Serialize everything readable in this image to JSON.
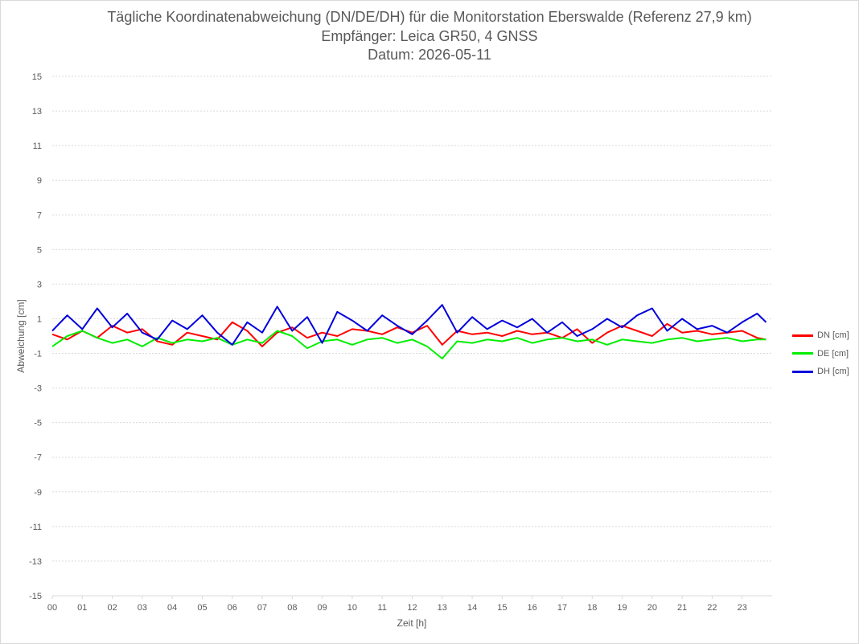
{
  "chart_data": {
    "type": "line",
    "title": "Tägliche Koordinatenabweichung (DN/DE/DH) für die Monitorstation Eberswalde (Referenz 27,9 km)",
    "subtitle": "Empfänger: Leica GR50, 4 GNSS",
    "subtitle2": "Datum: 2026-05-11",
    "xlabel": "Zeit [h]",
    "ylabel": "Abweichung [cm]",
    "xlim": [
      0,
      24
    ],
    "ylim": [
      -15,
      15
    ],
    "x_ticks": [
      "00",
      "01",
      "02",
      "03",
      "04",
      "05",
      "06",
      "07",
      "08",
      "09",
      "10",
      "11",
      "12",
      "13",
      "14",
      "15",
      "16",
      "17",
      "18",
      "19",
      "20",
      "21",
      "22",
      "23"
    ],
    "y_ticks": [
      15,
      13,
      11,
      9,
      7,
      5,
      3,
      1,
      -1,
      -3,
      -5,
      -7,
      -9,
      -11,
      -13,
      -15
    ],
    "grid": "horizontal dotted",
    "legend_position": "right",
    "x": [
      0,
      0.5,
      1,
      1.5,
      2,
      2.5,
      3,
      3.5,
      4,
      4.5,
      5,
      5.5,
      6,
      6.5,
      7,
      7.5,
      8,
      8.5,
      9,
      9.5,
      10,
      10.5,
      11,
      11.5,
      12,
      12.5,
      13,
      13.5,
      14,
      14.5,
      15,
      15.5,
      16,
      16.5,
      17,
      17.5,
      18,
      18.5,
      19,
      19.5,
      20,
      20.5,
      21,
      21.5,
      22,
      22.5,
      23,
      23.5,
      23.8
    ],
    "series": [
      {
        "name": "DN [cm]",
        "color": "#ff0000",
        "values": [
          0.1,
          -0.2,
          0.3,
          -0.1,
          0.6,
          0.2,
          0.4,
          -0.3,
          -0.5,
          0.2,
          0.0,
          -0.2,
          0.8,
          0.3,
          -0.6,
          0.2,
          0.5,
          -0.1,
          0.2,
          0.0,
          0.4,
          0.3,
          0.1,
          0.5,
          0.2,
          0.6,
          -0.5,
          0.3,
          0.1,
          0.2,
          0.0,
          0.3,
          0.1,
          0.2,
          -0.1,
          0.4,
          -0.4,
          0.2,
          0.6,
          0.3,
          0.0,
          0.7,
          0.2,
          0.3,
          0.1,
          0.2,
          0.3,
          -0.1,
          -0.2
        ]
      },
      {
        "name": "DE [cm]",
        "color": "#00ee00",
        "values": [
          -0.6,
          0.0,
          0.3,
          -0.1,
          -0.4,
          -0.2,
          -0.6,
          -0.1,
          -0.4,
          -0.2,
          -0.3,
          -0.1,
          -0.5,
          -0.2,
          -0.4,
          0.3,
          0.0,
          -0.7,
          -0.3,
          -0.2,
          -0.5,
          -0.2,
          -0.1,
          -0.4,
          -0.2,
          -0.6,
          -1.3,
          -0.3,
          -0.4,
          -0.2,
          -0.3,
          -0.1,
          -0.4,
          -0.2,
          -0.1,
          -0.3,
          -0.2,
          -0.5,
          -0.2,
          -0.3,
          -0.4,
          -0.2,
          -0.1,
          -0.3,
          -0.2,
          -0.1,
          -0.3,
          -0.2,
          -0.2
        ]
      },
      {
        "name": "DH [cm]",
        "color": "#0000dd",
        "values": [
          0.3,
          1.2,
          0.4,
          1.6,
          0.5,
          1.3,
          0.2,
          -0.2,
          0.9,
          0.4,
          1.2,
          0.2,
          -0.5,
          0.8,
          0.2,
          1.7,
          0.3,
          1.1,
          -0.4,
          1.4,
          0.9,
          0.3,
          1.2,
          0.6,
          0.1,
          0.9,
          1.8,
          0.2,
          1.1,
          0.4,
          0.9,
          0.5,
          1.0,
          0.2,
          0.8,
          0.0,
          0.4,
          1.0,
          0.5,
          1.2,
          1.6,
          0.3,
          1.0,
          0.4,
          0.6,
          0.2,
          0.8,
          1.3,
          0.8
        ]
      }
    ]
  }
}
